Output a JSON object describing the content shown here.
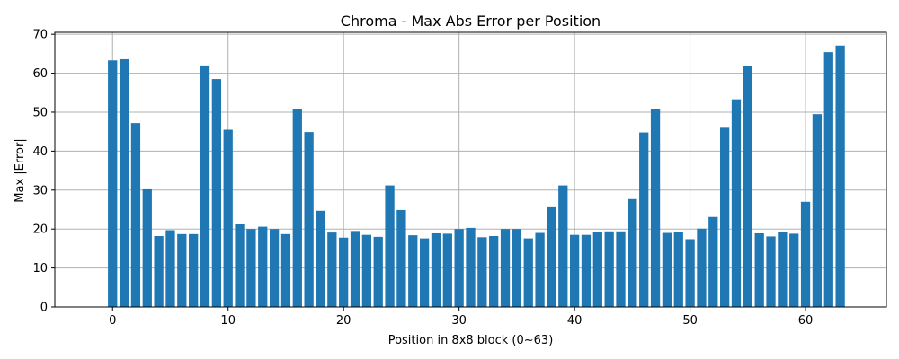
{
  "chart_data": {
    "type": "bar",
    "title": "Chroma - Max Abs Error per Position",
    "xlabel": "Position in 8x8 block (0~63)",
    "ylabel": "Max |Error|",
    "xlim": [
      -5,
      67
    ],
    "ylim": [
      0,
      70.5
    ],
    "xticks": [
      0,
      10,
      20,
      30,
      40,
      50,
      60
    ],
    "yticks": [
      0,
      10,
      20,
      30,
      40,
      50,
      60,
      70
    ],
    "grid": true,
    "bar_color": "#1f77b4",
    "x": [
      0,
      1,
      2,
      3,
      4,
      5,
      6,
      7,
      8,
      9,
      10,
      11,
      12,
      13,
      14,
      15,
      16,
      17,
      18,
      19,
      20,
      21,
      22,
      23,
      24,
      25,
      26,
      27,
      28,
      29,
      30,
      31,
      32,
      33,
      34,
      35,
      36,
      37,
      38,
      39,
      40,
      41,
      42,
      43,
      44,
      45,
      46,
      47,
      48,
      49,
      50,
      51,
      52,
      53,
      54,
      55,
      56,
      57,
      58,
      59,
      60,
      61,
      62,
      63
    ],
    "values": [
      63.3,
      63.6,
      47.2,
      30.2,
      18.2,
      19.7,
      18.7,
      18.7,
      62.0,
      58.5,
      45.5,
      21.2,
      20.0,
      20.6,
      20.0,
      18.7,
      50.7,
      44.9,
      24.7,
      19.1,
      17.8,
      19.5,
      18.5,
      18.0,
      31.2,
      24.9,
      18.4,
      17.6,
      18.9,
      18.8,
      20.0,
      20.3,
      17.9,
      18.2,
      20.0,
      20.0,
      17.6,
      19.0,
      25.6,
      31.2,
      18.5,
      18.5,
      19.2,
      19.4,
      19.4,
      27.7,
      44.8,
      50.9,
      19.0,
      19.2,
      17.4,
      20.1,
      23.1,
      46.0,
      53.3,
      61.8,
      18.9,
      18.1,
      19.2,
      18.8,
      27.0,
      49.5,
      65.4,
      67.1
    ]
  }
}
